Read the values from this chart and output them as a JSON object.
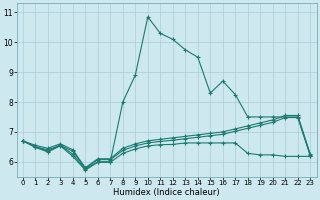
{
  "xlabel": "Humidex (Indice chaleur)",
  "bg_color": "#cde8ee",
  "grid_color": "#aacdd6",
  "line_color": "#1a7a6e",
  "xlim": [
    -0.5,
    23.5
  ],
  "ylim": [
    5.5,
    11.3
  ],
  "xticks": [
    0,
    1,
    2,
    3,
    4,
    5,
    6,
    7,
    8,
    9,
    10,
    11,
    12,
    13,
    14,
    15,
    16,
    17,
    18,
    19,
    20,
    21,
    22,
    23
  ],
  "yticks": [
    6,
    7,
    8,
    9,
    10,
    11
  ],
  "line1_y": [
    6.7,
    6.5,
    6.35,
    6.55,
    6.25,
    5.75,
    6.0,
    6.0,
    8.0,
    8.9,
    10.85,
    10.3,
    10.1,
    9.75,
    9.5,
    8.3,
    8.7,
    8.25,
    7.5,
    7.5,
    7.5,
    7.5,
    7.5,
    6.2
  ],
  "line2_y": [
    6.7,
    6.55,
    6.45,
    6.6,
    6.4,
    5.8,
    6.1,
    6.1,
    6.45,
    6.6,
    6.7,
    6.75,
    6.8,
    6.85,
    6.9,
    6.95,
    7.0,
    7.1,
    7.2,
    7.3,
    7.4,
    7.55,
    7.55,
    6.25
  ],
  "line3_y": [
    6.7,
    6.5,
    6.4,
    6.55,
    6.35,
    5.78,
    6.07,
    6.07,
    6.38,
    6.53,
    6.63,
    6.68,
    6.72,
    6.77,
    6.82,
    6.87,
    6.92,
    7.02,
    7.12,
    7.22,
    7.32,
    7.48,
    7.48,
    6.22
  ],
  "line4_y": [
    6.7,
    6.48,
    6.33,
    6.53,
    6.18,
    5.72,
    5.98,
    5.98,
    6.28,
    6.43,
    6.53,
    6.57,
    6.58,
    6.63,
    6.63,
    6.63,
    6.63,
    6.63,
    6.28,
    6.23,
    6.23,
    6.18,
    6.18,
    6.18
  ]
}
